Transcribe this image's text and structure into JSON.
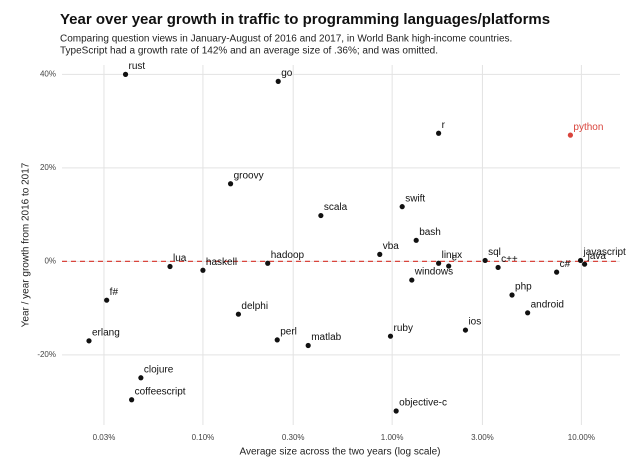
{
  "chart_data": {
    "type": "scatter",
    "title": "Year over year growth in traffic to programming languages/platforms",
    "subtitle": [
      "Comparing question views in January-August of 2016 and 2017, in World Bank high-income countries.",
      "TypeScript had a growth rate of 142% and an average size of .36%; and was omitted."
    ],
    "xlabel": "Average size across the two years (log scale)",
    "ylabel": "Year / year growth from 2016 to 2017",
    "xscale": "log",
    "xlim": [
      0.018,
      16
    ],
    "ylim": [
      -35,
      42
    ],
    "xticks": [
      {
        "value": 0.03,
        "label": "0.03%"
      },
      {
        "value": 0.1,
        "label": "0.10%"
      },
      {
        "value": 0.3,
        "label": "0.30%"
      },
      {
        "value": 1,
        "label": "1.00%"
      },
      {
        "value": 3,
        "label": "3.00%"
      },
      {
        "value": 10,
        "label": "10.00%"
      }
    ],
    "yticks": [
      {
        "value": -20,
        "label": "-20%"
      },
      {
        "value": 0,
        "label": "0%"
      },
      {
        "value": 20,
        "label": "20%"
      },
      {
        "value": 40,
        "label": "40%"
      }
    ],
    "grid": true,
    "color": "#111111",
    "reference_line": {
      "y": 0,
      "color": "#d9453d"
    },
    "points": [
      {
        "label": "rust",
        "x": 0.039,
        "y": 40
      },
      {
        "label": "go",
        "x": 0.25,
        "y": 38.5
      },
      {
        "label": "r",
        "x": 1.76,
        "y": 27.4
      },
      {
        "label": "python",
        "x": 8.75,
        "y": 27,
        "color": "#d9453d"
      },
      {
        "label": "groovy",
        "x": 0.14,
        "y": 16.6
      },
      {
        "label": "scala",
        "x": 0.42,
        "y": 9.8
      },
      {
        "label": "swift",
        "x": 1.13,
        "y": 11.7
      },
      {
        "label": "bash",
        "x": 1.34,
        "y": 4.5
      },
      {
        "label": "vba",
        "x": 0.86,
        "y": 1.5
      },
      {
        "label": "hadoop",
        "x": 0.22,
        "y": -0.4
      },
      {
        "label": "lua",
        "x": 0.067,
        "y": -1.1
      },
      {
        "label": "haskell",
        "x": 0.1,
        "y": -1.9
      },
      {
        "label": "linux",
        "x": 1.76,
        "y": -0.4
      },
      {
        "label": "c",
        "x": 1.99,
        "y": -1
      },
      {
        "label": "sql",
        "x": 3.1,
        "y": 0.2
      },
      {
        "label": "windows",
        "x": 1.27,
        "y": -4
      },
      {
        "label": "c++",
        "x": 3.63,
        "y": -1.3
      },
      {
        "label": "javascript",
        "x": 9.9,
        "y": 0.2
      },
      {
        "label": "java",
        "x": 10.4,
        "y": -0.6
      },
      {
        "label": "c#",
        "x": 7.4,
        "y": -2.3
      },
      {
        "label": "php",
        "x": 4.3,
        "y": -7.2
      },
      {
        "label": "android",
        "x": 5.2,
        "y": -11
      },
      {
        "label": "ios",
        "x": 2.44,
        "y": -14.7
      },
      {
        "label": "f#",
        "x": 0.031,
        "y": -8.3
      },
      {
        "label": "erlang",
        "x": 0.025,
        "y": -17
      },
      {
        "label": "delphi",
        "x": 0.154,
        "y": -11.3
      },
      {
        "label": "perl",
        "x": 0.247,
        "y": -16.8
      },
      {
        "label": "matlab",
        "x": 0.36,
        "y": -18
      },
      {
        "label": "ruby",
        "x": 0.98,
        "y": -16
      },
      {
        "label": "clojure",
        "x": 0.047,
        "y": -24.9
      },
      {
        "label": "coffeescript",
        "x": 0.042,
        "y": -29.6
      },
      {
        "label": "objective-c",
        "x": 1.05,
        "y": -32
      }
    ]
  }
}
